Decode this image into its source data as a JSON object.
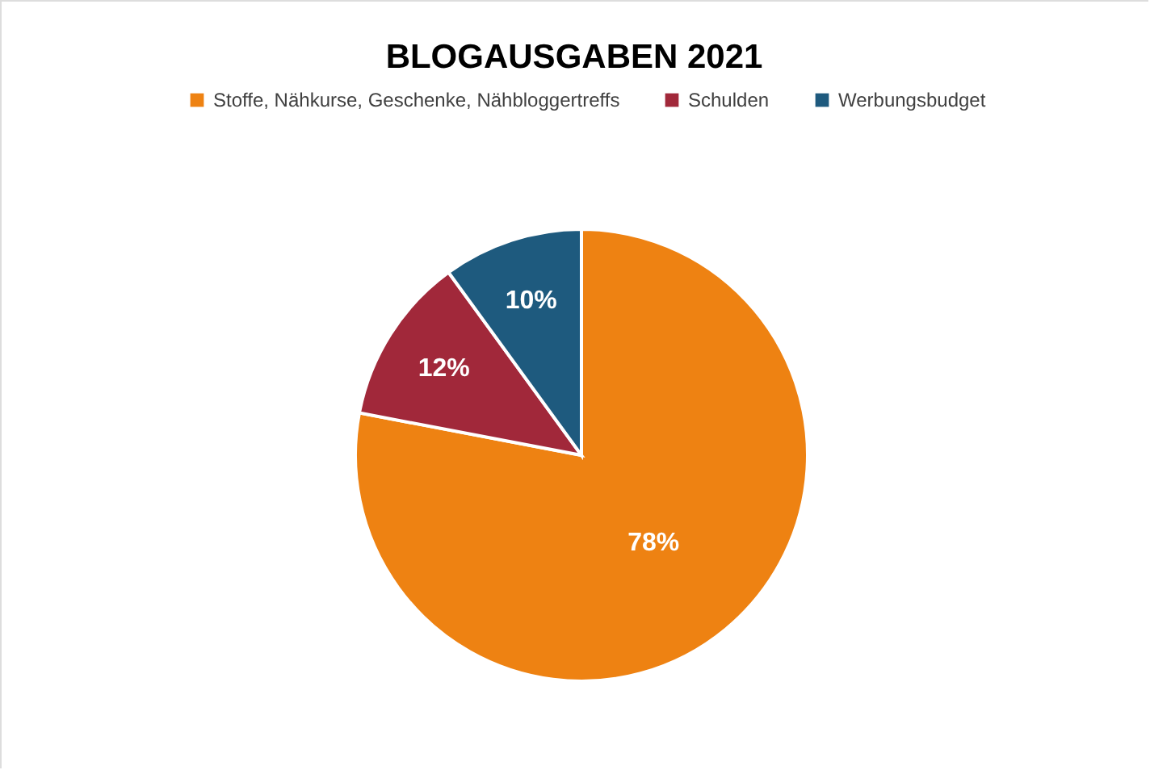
{
  "chart_data": {
    "type": "pie",
    "title": "BLOGAUSGABEN 2021",
    "categories": [
      "Stoffe, Nähkurse, Geschenke, Nähbloggertreffs",
      "Schulden",
      "Werbungsbudget"
    ],
    "values": [
      78,
      12,
      10
    ],
    "colors": [
      "#ee8212",
      "#a1283a",
      "#1e5a7e"
    ],
    "value_labels": [
      "78%",
      "12%",
      "10%"
    ],
    "legend": "top"
  }
}
